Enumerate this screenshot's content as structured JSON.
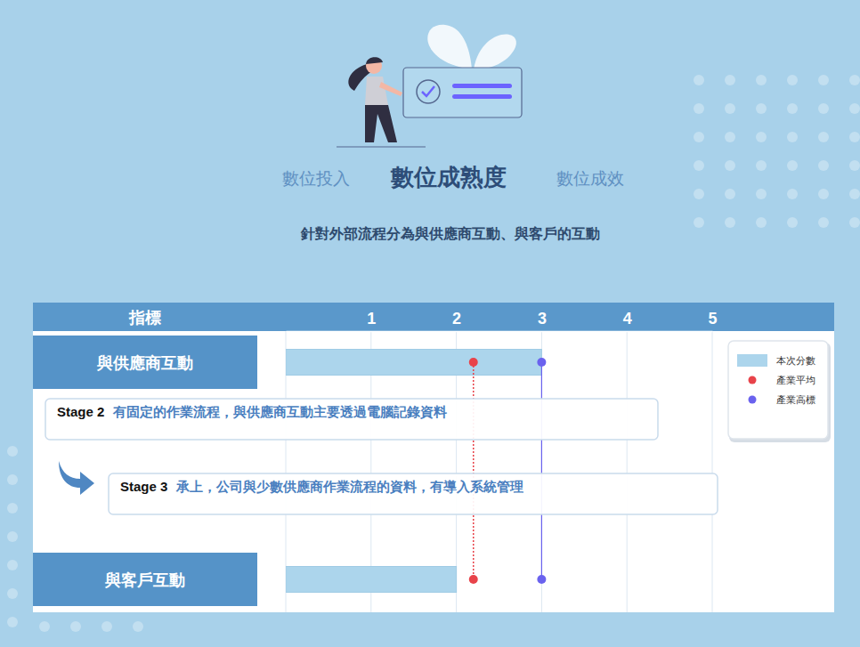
{
  "header": {
    "tabs": [
      {
        "label": "數位投入",
        "active": false
      },
      {
        "label": "數位成熟度",
        "active": true
      },
      {
        "label": "數位成效",
        "active": false
      }
    ],
    "subtitle": "針對外部流程分為與供應商互動、與客戶的互動"
  },
  "chart_data": {
    "type": "bar",
    "orientation": "horizontal",
    "ylabel": "指標",
    "categories": [
      "與供應商互動",
      "與客戶互動"
    ],
    "series": [
      {
        "name": "本次分數",
        "type": "bar",
        "color": "#acd5ec",
        "values": [
          3,
          2
        ]
      },
      {
        "name": "產業平均",
        "type": "line",
        "color": "#e8434a",
        "marker": "circle",
        "line_style": "dotted",
        "values": [
          2.2,
          2.2
        ]
      },
      {
        "name": "產業高標",
        "type": "line",
        "color": "#6a62ee",
        "marker": "circle",
        "line_style": "solid",
        "values": [
          3,
          3
        ]
      }
    ],
    "xlim": [
      0,
      5
    ],
    "xticks": [
      1,
      2,
      3,
      4,
      5
    ],
    "grid": true,
    "legend": "upper right",
    "annotations": [
      {
        "label": "Stage 2",
        "text": "有固定的作業流程，與供應商互動主要透過電腦記錄資料"
      },
      {
        "label": "Stage 3",
        "text": "承上，公司與少數供應商作業流程的資料，有導入系統管理"
      }
    ]
  }
}
